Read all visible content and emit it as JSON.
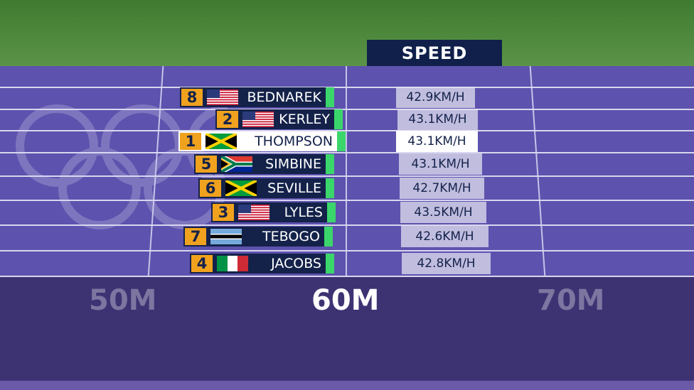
{
  "header": {
    "title": "SPEED"
  },
  "rows": [
    {
      "lane": "8",
      "name": "BEDNAREK",
      "speed": "42.9KM/H"
    },
    {
      "lane": "2",
      "name": "KERLEY",
      "speed": "43.1KM/H"
    },
    {
      "lane": "1",
      "name": "THOMPSON",
      "speed": "43.1KM/H"
    },
    {
      "lane": "5",
      "name": "SIMBINE",
      "speed": "43.1KM/H"
    },
    {
      "lane": "6",
      "name": "SEVILLE",
      "speed": "42.7KM/H"
    },
    {
      "lane": "3",
      "name": "LYLES",
      "speed": "43.5KM/H"
    },
    {
      "lane": "7",
      "name": "TEBOGO",
      "speed": "42.6KM/H"
    },
    {
      "lane": "4",
      "name": "JACOBS",
      "speed": "42.8KM/H"
    }
  ],
  "distance_markers": [
    "50M",
    "60M",
    "70M"
  ]
}
